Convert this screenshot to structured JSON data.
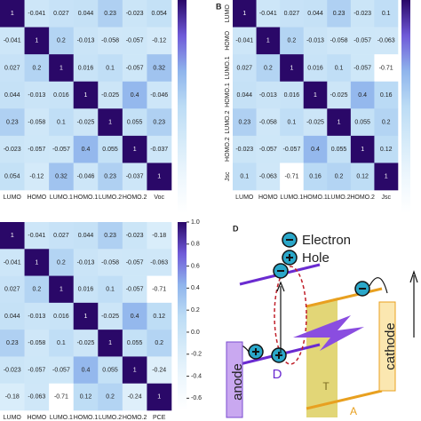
{
  "chart_data": [
    {
      "type": "heatmap",
      "x": [
        "LUMO",
        "HOMO",
        "LUMO.1",
        "HOMO.1",
        "LUMO.2",
        "HOMO.2",
        "Voc"
      ],
      "values": [
        [
          1,
          -0.041,
          0.027,
          0.044,
          0.23,
          -0.023,
          0.054
        ],
        [
          -0.041,
          1,
          0.2,
          -0.013,
          -0.058,
          -0.057,
          -0.12
        ],
        [
          0.027,
          0.2,
          1,
          0.016,
          0.1,
          -0.057,
          0.32
        ],
        [
          0.044,
          -0.013,
          0.016,
          1,
          -0.025,
          0.4,
          -0.046
        ],
        [
          0.23,
          -0.058,
          0.1,
          -0.025,
          1,
          0.055,
          0.23
        ],
        [
          -0.023,
          -0.057,
          -0.057,
          0.4,
          0.055,
          1,
          -0.037
        ],
        [
          0.054,
          -0.12,
          0.32,
          -0.046,
          0.23,
          -0.037,
          1
        ]
      ],
      "clim": [
        -0.71,
        1
      ],
      "colormap": [
        "#ffffff",
        "#eef7fd",
        "#d6ebf9",
        "#bcdcf5",
        "#8fb4ec",
        "#6f5ad8",
        "#2a0868"
      ]
    },
    {
      "type": "heatmap",
      "panel_label": "B",
      "x": [
        "LUMO",
        "HOMO",
        "LUMO.1",
        "HOMO.1",
        "LUMO.2",
        "HOMO.2",
        "Jsc"
      ],
      "y": [
        "LUMO",
        "HOMO",
        "LUMO.1",
        "HOMO.1",
        "LUMO.2",
        "HOMO.2",
        "Jsc"
      ],
      "values": [
        [
          1,
          -0.041,
          0.027,
          0.044,
          0.23,
          -0.023,
          0.1
        ],
        [
          -0.041,
          1,
          0.2,
          -0.013,
          -0.058,
          -0.057,
          -0.063
        ],
        [
          0.027,
          0.2,
          1,
          0.016,
          0.1,
          -0.057,
          -0.71
        ],
        [
          0.044,
          -0.013,
          0.016,
          1,
          -0.025,
          0.4,
          0.16
        ],
        [
          0.23,
          -0.058,
          0.1,
          -0.025,
          1,
          0.055,
          0.2
        ],
        [
          -0.023,
          -0.057,
          -0.057,
          0.4,
          0.055,
          1,
          0.12
        ],
        [
          0.1,
          -0.063,
          -0.71,
          0.16,
          0.2,
          0.12,
          1
        ]
      ],
      "clim": [
        -0.71,
        1
      ],
      "colormap": [
        "#ffffff",
        "#eef7fd",
        "#d6ebf9",
        "#bcdcf5",
        "#8fb4ec",
        "#6f5ad8",
        "#2a0868"
      ]
    },
    {
      "type": "heatmap",
      "x": [
        "LUMO",
        "HOMO",
        "LUMO.1",
        "HOMO.1",
        "LUMO.2",
        "HOMO.2",
        "PCE"
      ],
      "values": [
        [
          1,
          -0.041,
          0.027,
          0.044,
          0.23,
          -0.023,
          -0.18
        ],
        [
          -0.041,
          1,
          0.2,
          -0.013,
          -0.058,
          -0.057,
          -0.063
        ],
        [
          0.027,
          0.2,
          1,
          0.016,
          0.1,
          -0.057,
          -0.71
        ],
        [
          0.044,
          -0.013,
          0.016,
          1,
          -0.025,
          0.4,
          0.12
        ],
        [
          0.23,
          -0.058,
          0.1,
          -0.025,
          1,
          0.055,
          0.2
        ],
        [
          -0.023,
          -0.057,
          -0.057,
          0.4,
          0.055,
          1,
          -0.24
        ],
        [
          -0.18,
          -0.063,
          -0.71,
          0.12,
          0.2,
          -0.24,
          1
        ]
      ],
      "clim": [
        -0.71,
        1
      ],
      "cticks": [
        {
          "value": 1,
          "label": "1.0"
        },
        0.8,
        0.6,
        0.4,
        0.2,
        {
          "value": 0,
          "label": "0.0"
        },
        -0.2,
        -0.4,
        -0.6
      ],
      "colormap": [
        "#ffffff",
        "#eef7fd",
        "#d6ebf9",
        "#bcdcf5",
        "#8fb4ec",
        "#6f5ad8",
        "#2a0868"
      ]
    }
  ],
  "diagram": {
    "panel_label": "D",
    "legend": [
      "Electron",
      "Hole"
    ],
    "anode": "anode",
    "cathode": "cathode",
    "donor": "D",
    "transport": "T",
    "acceptor": "A"
  }
}
